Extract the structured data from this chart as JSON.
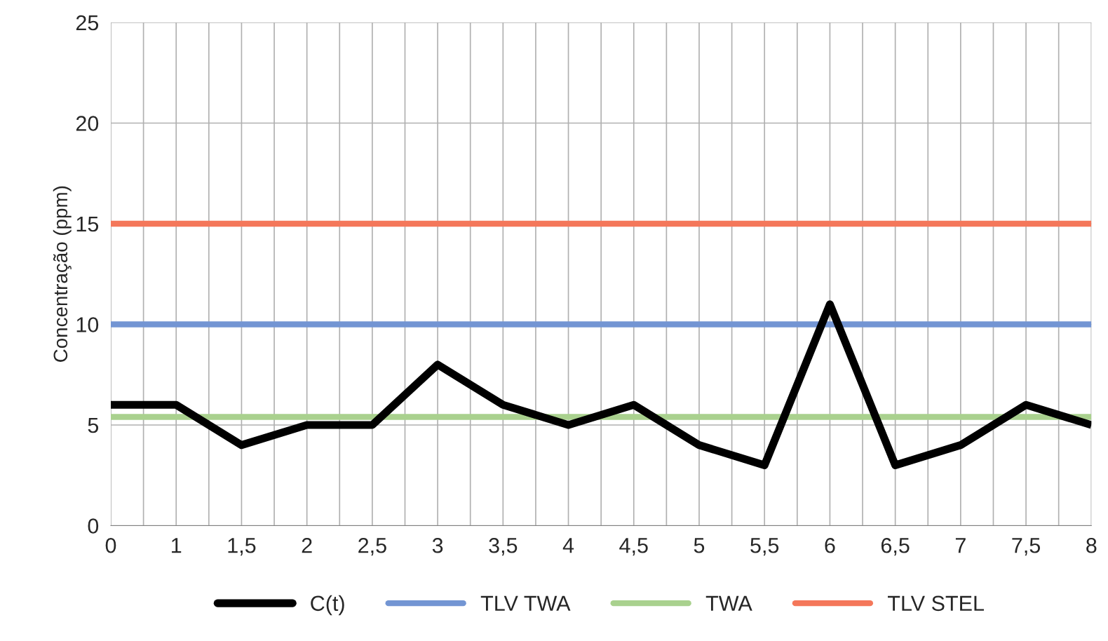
{
  "chart_data": {
    "type": "line",
    "ylabel": "Concentração (ppm)",
    "categories": [
      "0",
      "1",
      "1,5",
      "2",
      "2,5",
      "3",
      "3,5",
      "4",
      "4,5",
      "5",
      "5,5",
      "6",
      "6,5",
      "7",
      "7,5",
      "8"
    ],
    "series": [
      {
        "name": "C(t)",
        "color": "#000000",
        "values": [
          6,
          6,
          4,
          5,
          5,
          8,
          6,
          5,
          6,
          4,
          3,
          11,
          3,
          4,
          6,
          5
        ]
      },
      {
        "name": "TLV TWA",
        "color": "#7395d3",
        "values": [
          10,
          10,
          10,
          10,
          10,
          10,
          10,
          10,
          10,
          10,
          10,
          10,
          10,
          10,
          10,
          10
        ]
      },
      {
        "name": "TWA",
        "color": "#a9d18e",
        "values": [
          5.4,
          5.4,
          5.4,
          5.4,
          5.4,
          5.4,
          5.4,
          5.4,
          5.4,
          5.4,
          5.4,
          5.4,
          5.4,
          5.4,
          5.4,
          5.4
        ]
      },
      {
        "name": "TLV STEL",
        "color": "#f4775a",
        "values": [
          15,
          15,
          15,
          15,
          15,
          15,
          15,
          15,
          15,
          15,
          15,
          15,
          15,
          15,
          15,
          15
        ]
      }
    ],
    "ylim": [
      0,
      25
    ],
    "yticks": [
      0,
      5,
      10,
      15,
      20,
      25
    ],
    "grid": true,
    "legend": "bottom",
    "marker": "none",
    "line_style": "solid"
  }
}
